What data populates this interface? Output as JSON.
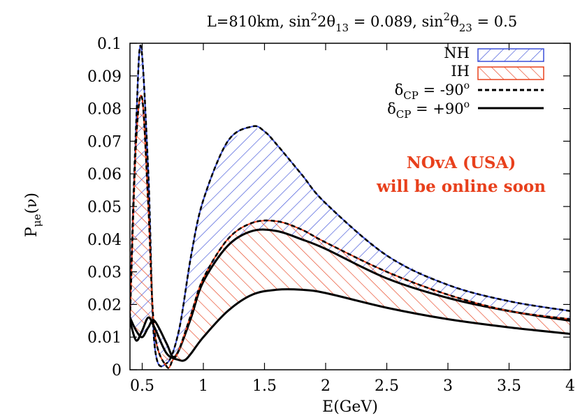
{
  "chart_data": {
    "type": "line",
    "title": "L=810km, sin²2θ₁₃ = 0.089, sin²θ₂₃ = 0.5",
    "title_parts": {
      "a": "L=810km, sin",
      "b": "2",
      "c": "2θ",
      "d": "13",
      "e": " = 0.089, sin",
      "f": "2",
      "g": "θ",
      "h": "23",
      "i": " = 0.5"
    },
    "xlabel": "E(GeV)",
    "ylabel": {
      "main": "P",
      "sub": "μe",
      "rest": "(ν)"
    },
    "xlim": [
      0.4,
      4.0
    ],
    "ylim": [
      0,
      0.1
    ],
    "xticks": [
      0.5,
      1,
      1.5,
      2,
      2.5,
      3,
      3.5,
      4
    ],
    "xtick_labels": [
      "0.5",
      "1",
      "1.5",
      "2",
      "2.5",
      "3",
      "3.5",
      "4"
    ],
    "yticks": [
      0,
      0.01,
      0.02,
      0.03,
      0.04,
      0.05,
      0.06,
      0.07,
      0.08,
      0.09,
      0.1
    ],
    "ytick_labels": [
      "0",
      "0.01",
      "0.02",
      "0.03",
      "0.04",
      "0.05",
      "0.06",
      "0.07",
      "0.08",
      "0.09",
      "0.1"
    ],
    "grid": false,
    "legend_position": "top-right",
    "legend": {
      "nh": "NH",
      "ih": "IH",
      "dm_main": "δ",
      "dm_sub": "CP",
      "dm_rest": " = -90",
      "dm_sup": "o",
      "dp_main": "δ",
      "dp_sub": "CP",
      "dp_rest": " = +90",
      "dp_sup": "o"
    },
    "annotation": {
      "line1": "NOvA (USA)",
      "line2": "will be online soon",
      "color": "#e8401c"
    },
    "colors": {
      "nh": "#3b4fd8",
      "ih": "#e8401c",
      "delta": "#000000"
    },
    "series": [
      {
        "name": "NH",
        "band": "nh",
        "delta": "-90",
        "x": [
          0.4,
          0.45,
          0.49,
          0.55,
          0.6,
          0.7,
          0.8,
          0.9,
          1.0,
          1.2,
          1.4,
          1.5,
          1.6,
          1.8,
          2.0,
          2.5,
          3.0,
          3.5,
          4.0
        ],
        "y": [
          0.02,
          0.075,
          0.099,
          0.06,
          0.008,
          0.002,
          0.012,
          0.035,
          0.052,
          0.07,
          0.0745,
          0.073,
          0.069,
          0.06,
          0.051,
          0.035,
          0.026,
          0.021,
          0.018
        ]
      },
      {
        "name": "NH",
        "band": "nh",
        "delta": "+90",
        "x": [
          0.4,
          0.45,
          0.5,
          0.55,
          0.6,
          0.7,
          0.75,
          0.8,
          0.9,
          1.0,
          1.2,
          1.4,
          1.6,
          1.8,
          2.0,
          2.5,
          3.0,
          3.5,
          4.0
        ],
        "y": [
          0.016,
          0.012,
          0.01,
          0.013,
          0.015,
          0.008,
          0.004,
          0.006,
          0.016,
          0.027,
          0.038,
          0.0425,
          0.0425,
          0.04,
          0.037,
          0.028,
          0.022,
          0.018,
          0.015
        ]
      },
      {
        "name": "IH",
        "band": "ih",
        "delta": "-90",
        "x": [
          0.4,
          0.45,
          0.5,
          0.55,
          0.6,
          0.7,
          0.75,
          0.8,
          0.9,
          1.0,
          1.2,
          1.4,
          1.6,
          1.8,
          2.0,
          2.5,
          3.0,
          3.5,
          4.0
        ],
        "y": [
          0.016,
          0.07,
          0.083,
          0.05,
          0.012,
          0.001,
          0.003,
          0.006,
          0.017,
          0.028,
          0.04,
          0.045,
          0.0455,
          0.043,
          0.039,
          0.03,
          0.023,
          0.018,
          0.0155
        ]
      },
      {
        "name": "IH",
        "band": "ih",
        "delta": "+90",
        "x": [
          0.4,
          0.45,
          0.5,
          0.55,
          0.6,
          0.7,
          0.8,
          0.85,
          0.9,
          1.0,
          1.2,
          1.4,
          1.6,
          1.8,
          2.0,
          2.5,
          3.0,
          3.5,
          4.0
        ],
        "y": [
          0.015,
          0.009,
          0.012,
          0.016,
          0.013,
          0.005,
          0.003,
          0.003,
          0.005,
          0.01,
          0.018,
          0.023,
          0.0245,
          0.0245,
          0.0235,
          0.019,
          0.0155,
          0.013,
          0.011
        ]
      }
    ]
  }
}
